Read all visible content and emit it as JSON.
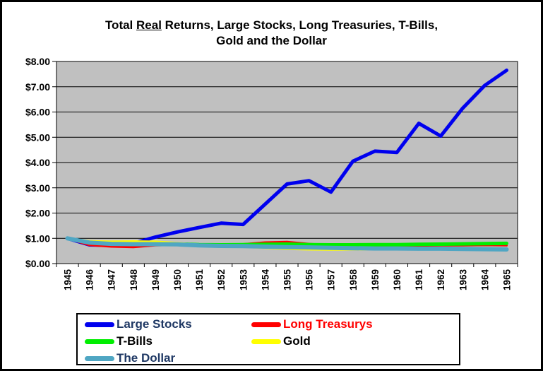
{
  "title": {
    "prefix": "Total ",
    "underlined": "Real",
    "suffix": " Returns, Large Stocks, Long Treasuries, T-Bills,",
    "line2": "Gold and the Dollar"
  },
  "chart_data": {
    "type": "line",
    "title": "Total Real Returns, Large Stocks, Long Treasuries, T-Bills, Gold and the Dollar",
    "x": [
      1945,
      1946,
      1947,
      1948,
      1949,
      1950,
      1951,
      1952,
      1953,
      1954,
      1955,
      1956,
      1957,
      1958,
      1959,
      1960,
      1961,
      1962,
      1963,
      1964,
      1965
    ],
    "series": [
      {
        "name": "Large Stocks",
        "color": "#0000EE",
        "stroke_width": 5,
        "values": [
          1.0,
          0.74,
          0.72,
          0.8,
          1.05,
          1.25,
          1.43,
          1.6,
          1.55,
          2.35,
          3.15,
          3.28,
          2.83,
          4.05,
          4.45,
          4.4,
          5.55,
          5.05,
          6.15,
          7.05,
          7.65
        ]
      },
      {
        "name": "Long Treasurys",
        "color": "#FF0000",
        "stroke_width": 3,
        "values": [
          1.0,
          0.73,
          0.67,
          0.65,
          0.72,
          0.74,
          0.71,
          0.73,
          0.77,
          0.84,
          0.86,
          0.78,
          0.73,
          0.7,
          0.69,
          0.7,
          0.71,
          0.72,
          0.72,
          0.73,
          0.72
        ]
      },
      {
        "name": "T-Bills",
        "color": "#00EE00",
        "stroke_width": 5,
        "values": [
          1.0,
          0.84,
          0.8,
          0.78,
          0.79,
          0.78,
          0.75,
          0.74,
          0.75,
          0.76,
          0.77,
          0.75,
          0.74,
          0.74,
          0.75,
          0.75,
          0.76,
          0.77,
          0.78,
          0.79,
          0.8
        ]
      },
      {
        "name": "Gold",
        "color": "#FFFF00",
        "stroke_width": 3,
        "values": [
          1.0,
          0.89,
          0.87,
          0.88,
          0.87,
          0.82,
          0.74,
          0.7,
          0.66,
          0.62,
          0.58,
          0.56,
          0.55,
          0.56,
          0.56,
          0.56,
          0.57,
          0.57,
          0.57,
          0.56,
          0.56
        ]
      },
      {
        "name": "The Dollar",
        "color": "#4FA6C3",
        "stroke_width": 6,
        "values": [
          1.0,
          0.83,
          0.78,
          0.77,
          0.77,
          0.76,
          0.72,
          0.7,
          0.69,
          0.67,
          0.65,
          0.64,
          0.62,
          0.61,
          0.6,
          0.6,
          0.59,
          0.59,
          0.58,
          0.57,
          0.56
        ]
      }
    ],
    "ylim": [
      0,
      8
    ],
    "y_tick_labels": [
      "$0.00",
      "$1.00",
      "$2.00",
      "$3.00",
      "$4.00",
      "$5.00",
      "$6.00",
      "$7.00",
      "$8.00"
    ],
    "x_tick_labels": [
      "1945",
      "1946",
      "1947",
      "1948",
      "1949",
      "1950",
      "1951",
      "1952",
      "1953",
      "1954",
      "1955",
      "1956",
      "1957",
      "1958",
      "1959",
      "1960",
      "1961",
      "1962",
      "1963",
      "1964",
      "1965"
    ],
    "grid": true,
    "plot_bg": "#C0C0C0",
    "grid_color": "#000000",
    "legend_position": "bottom"
  },
  "legend": {
    "items": [
      {
        "label": "Large Stocks",
        "color": "#0000EE",
        "text_color": "#1F3864"
      },
      {
        "label": "Long Treasurys",
        "color": "#FF0000",
        "text_color": "#FF0000"
      },
      {
        "label": "T-Bills",
        "color": "#00EE00",
        "text_color": "#000000"
      },
      {
        "label": "Gold",
        "color": "#FFFF00",
        "text_color": "#000000"
      },
      {
        "label": "The Dollar",
        "color": "#4FA6C3",
        "text_color": "#1F3864"
      }
    ]
  }
}
